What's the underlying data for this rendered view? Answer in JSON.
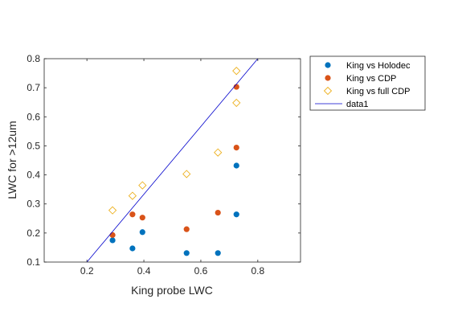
{
  "chart_data": {
    "type": "scatter",
    "xlabel": "King probe LWC",
    "ylabel": "LWC for >12um",
    "xlim": [
      0.05,
      0.95
    ],
    "ylim": [
      0.1,
      0.8
    ],
    "x_ticks": [
      "0.2",
      "0.4",
      "0.6",
      "0.8"
    ],
    "y_ticks": [
      "0.1",
      "0.2",
      "0.3",
      "0.4",
      "0.5",
      "0.6",
      "0.7",
      "0.8"
    ],
    "grid": false,
    "legend_position": "outside-top-right",
    "series": [
      {
        "name": "King vs Holodec",
        "color": "#0072BD",
        "marker": "filled-circle",
        "points": [
          [
            0.29,
            0.175
          ],
          [
            0.36,
            0.147
          ],
          [
            0.395,
            0.203
          ],
          [
            0.55,
            0.131
          ],
          [
            0.66,
            0.131
          ],
          [
            0.725,
            0.432
          ],
          [
            0.725,
            0.264
          ]
        ]
      },
      {
        "name": "King vs CDP",
        "color": "#D95319",
        "marker": "filled-circle",
        "points": [
          [
            0.29,
            0.193
          ],
          [
            0.36,
            0.264
          ],
          [
            0.395,
            0.253
          ],
          [
            0.55,
            0.213
          ],
          [
            0.66,
            0.27
          ],
          [
            0.725,
            0.703
          ],
          [
            0.725,
            0.494
          ]
        ]
      },
      {
        "name": "King vs full CDP",
        "color": "#EDB120",
        "marker": "open-diamond",
        "points": [
          [
            0.29,
            0.278
          ],
          [
            0.36,
            0.328
          ],
          [
            0.395,
            0.364
          ],
          [
            0.55,
            0.403
          ],
          [
            0.66,
            0.477
          ],
          [
            0.725,
            0.758
          ],
          [
            0.725,
            0.648
          ]
        ]
      },
      {
        "name": "data1",
        "color": "#0000CC",
        "marker": "line",
        "points": [
          [
            0.2,
            0.1
          ],
          [
            0.8,
            0.8
          ]
        ]
      }
    ]
  }
}
